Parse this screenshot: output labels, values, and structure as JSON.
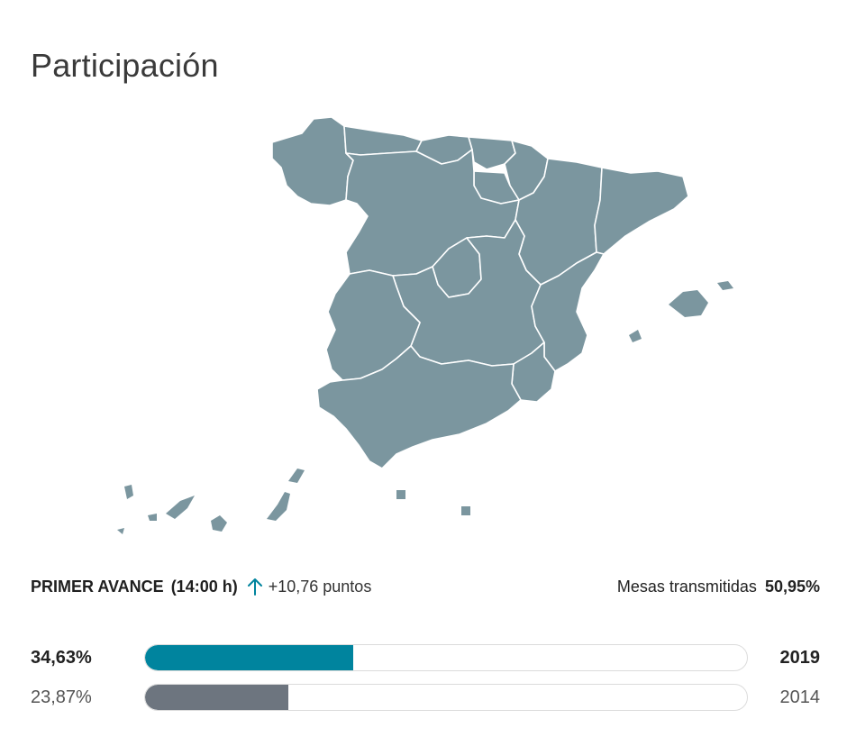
{
  "page": {
    "title": "Participación"
  },
  "status": {
    "avance_label": "PRIMER AVANCE",
    "avance_time": "(14:00 h)",
    "trend_icon": "arrow-up-icon",
    "delta": "+10,76 puntos",
    "mesas_label": "Mesas transmitidas",
    "mesas_value": "50,95%"
  },
  "bars": [
    {
      "year": "2019",
      "value_label": "34,63%",
      "value": 34.63,
      "color": "#00849e"
    },
    {
      "year": "2014",
      "value_label": "23,87%",
      "value": 23.87,
      "color": "#6d757f"
    }
  ],
  "colors": {
    "map_fill": "#7b969f",
    "accent": "#00849e",
    "previous": "#6d757f"
  }
}
